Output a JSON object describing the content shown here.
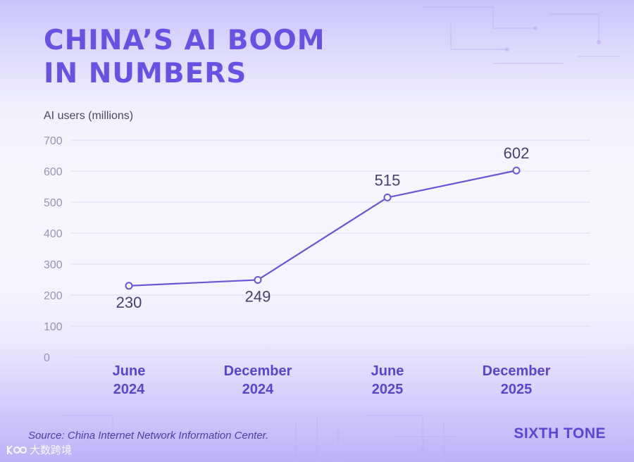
{
  "header": {
    "title_line1": "CHINA’S AI BOOM",
    "title_line2": "IN NUMBERS"
  },
  "chart_data": {
    "type": "line",
    "ylabel": "AI users (millions)",
    "categories": [
      [
        "June",
        "2024"
      ],
      [
        "December",
        "2024"
      ],
      [
        "June",
        "2025"
      ],
      [
        "December",
        "2025"
      ]
    ],
    "values": [
      230,
      249,
      515,
      602
    ],
    "value_labels": [
      "230",
      "249",
      "515",
      "602"
    ],
    "ylim": [
      0,
      700
    ],
    "yticks": [
      0,
      100,
      200,
      300,
      400,
      500,
      600,
      700
    ],
    "grid": true,
    "colors": {
      "line": "#6a55d9",
      "marker_fill": "#ffffff",
      "grid": "#ddd9f3",
      "tick_text": "#9a94b5",
      "category_text": "#5a44d0",
      "value_text": "#48406a"
    }
  },
  "footer": {
    "source": "Source: China Internet Network Information Center.",
    "brand": "SIXTH TONE",
    "watermark_text": "大数跨境"
  }
}
